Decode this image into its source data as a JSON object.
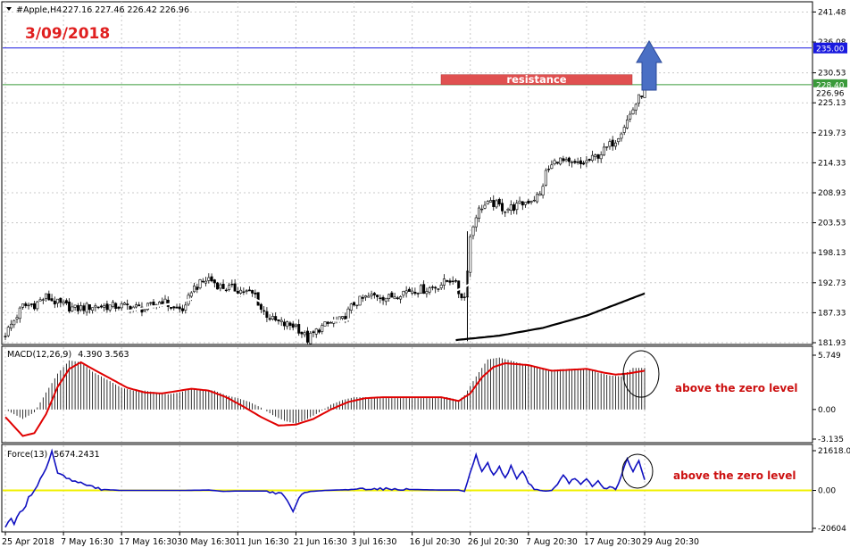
{
  "header": {
    "symbol": "#Apple,H4",
    "ohlc": "227.16 227.46 226.42 226.96"
  },
  "annotations": {
    "date": "3/09/2018",
    "resistance": "resistance",
    "macd_note": "above the zero level",
    "force_note": "above the zero level"
  },
  "colors": {
    "background": "#ffffff",
    "grid": "#c8c8c8",
    "candle_bull": "#ffffff",
    "candle_bear": "#000000",
    "ma_fast": "#ffffff",
    "ma_slow": "#000000",
    "line_235": "#1a1adf",
    "line_228": "#3a9a3a",
    "resistance_box": "#e05050",
    "arrow": "#4a6fc4",
    "macd_signal": "#e00000",
    "macd_hist": "#000000",
    "force": "#1010c0",
    "zero_line": "#f0f000",
    "date_text": "#e02020",
    "note_text": "#cc1010"
  },
  "chart_data": [
    {
      "type": "candlestick",
      "name": "price",
      "ylim": [
        181.93,
        243.0
      ],
      "price_ticks": [
        "241.48",
        "236.08",
        "230.53",
        "225.13",
        "219.73",
        "214.33",
        "208.93",
        "203.53",
        "198.13",
        "192.73",
        "187.33",
        "181.93"
      ],
      "levels": [
        {
          "value": 235.0,
          "label": "235.00"
        },
        {
          "value": 228.4,
          "label": "228.40"
        },
        {
          "value": 226.96,
          "label": "226.96"
        }
      ],
      "x_ticks": [
        "25 Apr 2018",
        "7 May 16:30",
        "17 May 16:30",
        "30 May 16:30",
        "11 Jun 16:30",
        "21 Jun 16:30",
        "3 Jul 16:30",
        "16 Jul 20:30",
        "26 Jul 20:30",
        "7 Aug 20:30",
        "17 Aug 20:30",
        "29 Aug 20:30"
      ],
      "resistance_zone": [
        228.4,
        230.2
      ],
      "close_anchors": [
        [
          0,
          183.5
        ],
        [
          3,
          186.0
        ],
        [
          6,
          188.5
        ],
        [
          10,
          188.8
        ],
        [
          14,
          190.2
        ],
        [
          18,
          189.0
        ],
        [
          24,
          188.0
        ],
        [
          30,
          188.5
        ],
        [
          36,
          188.5
        ],
        [
          42,
          188.5
        ],
        [
          48,
          188.0
        ],
        [
          54,
          189.5
        ],
        [
          58,
          188.0
        ],
        [
          62,
          188.0
        ],
        [
          64,
          191.5
        ],
        [
          70,
          193.5
        ],
        [
          74,
          192.0
        ],
        [
          80,
          191.5
        ],
        [
          86,
          190.5
        ],
        [
          88,
          188.0
        ],
        [
          92,
          186.0
        ],
        [
          96,
          185.2
        ],
        [
          100,
          185.0
        ],
        [
          104,
          182.5
        ],
        [
          108,
          184.5
        ],
        [
          112,
          185.5
        ],
        [
          116,
          186.0
        ],
        [
          120,
          189.0
        ],
        [
          124,
          190.0
        ],
        [
          128,
          190.5
        ],
        [
          132,
          190.0
        ],
        [
          136,
          191.0
        ],
        [
          140,
          191.5
        ],
        [
          144,
          191.5
        ],
        [
          148,
          192.0
        ],
        [
          152,
          193.0
        ],
        [
          154,
          193.5
        ],
        [
          156,
          191.0
        ],
        [
          158,
          190.0
        ],
        [
          160,
          201.0
        ],
        [
          162,
          205.0
        ],
        [
          164,
          206.5
        ],
        [
          168,
          207.0
        ],
        [
          172,
          206.0
        ],
        [
          176,
          206.5
        ],
        [
          180,
          207.5
        ],
        [
          184,
          208.5
        ],
        [
          186,
          212.5
        ],
        [
          190,
          215.0
        ],
        [
          194,
          214.0
        ],
        [
          198,
          214.0
        ],
        [
          202,
          215.0
        ],
        [
          206,
          216.5
        ],
        [
          210,
          218.5
        ],
        [
          214,
          222.0
        ],
        [
          217,
          225.0
        ],
        [
          219,
          226.8
        ],
        [
          220,
          226.96
        ]
      ],
      "ma_fast_anchors": [
        [
          20,
          186.0
        ],
        [
          40,
          187.5
        ],
        [
          60,
          189.2
        ],
        [
          72,
          191.0
        ],
        [
          84,
          190.2
        ],
        [
          100,
          186.5
        ],
        [
          116,
          185.8
        ],
        [
          130,
          188.0
        ],
        [
          146,
          190.0
        ],
        [
          156,
          191.5
        ],
        [
          164,
          193.5
        ],
        [
          172,
          200.0
        ],
        [
          180,
          203.5
        ],
        [
          190,
          207.5
        ],
        [
          200,
          210.5
        ],
        [
          210,
          213.0
        ],
        [
          220,
          218.5
        ]
      ],
      "ma_slow_anchors": [
        [
          155,
          182.4
        ],
        [
          170,
          183.2
        ],
        [
          185,
          184.6
        ],
        [
          200,
          186.8
        ],
        [
          210,
          188.8
        ],
        [
          220,
          190.8
        ]
      ]
    },
    {
      "type": "bar",
      "name": "MACD(12,26,9)",
      "values_label": "4.390 3.563",
      "ylim": [
        -3.135,
        5.749
      ],
      "ticks": [
        "5.749",
        "0.00",
        "-3.135"
      ],
      "hist_anchors": [
        [
          0,
          0.0
        ],
        [
          6,
          -1.0
        ],
        [
          10,
          -0.3
        ],
        [
          14,
          1.8
        ],
        [
          18,
          3.8
        ],
        [
          22,
          5.2
        ],
        [
          26,
          5.0
        ],
        [
          30,
          4.0
        ],
        [
          36,
          3.0
        ],
        [
          40,
          2.3
        ],
        [
          44,
          2.0
        ],
        [
          48,
          2.0
        ],
        [
          52,
          1.8
        ],
        [
          56,
          1.6
        ],
        [
          60,
          1.8
        ],
        [
          64,
          2.2
        ],
        [
          68,
          2.1
        ],
        [
          72,
          2.0
        ],
        [
          76,
          1.5
        ],
        [
          80,
          1.2
        ],
        [
          84,
          0.8
        ],
        [
          88,
          0.2
        ],
        [
          92,
          -0.6
        ],
        [
          96,
          -1.2
        ],
        [
          100,
          -1.5
        ],
        [
          104,
          -1.0
        ],
        [
          108,
          -0.3
        ],
        [
          112,
          0.5
        ],
        [
          116,
          1.0
        ],
        [
          120,
          1.3
        ],
        [
          124,
          1.3
        ],
        [
          128,
          1.2
        ],
        [
          132,
          1.2
        ],
        [
          136,
          1.2
        ],
        [
          140,
          1.2
        ],
        [
          144,
          1.2
        ],
        [
          148,
          1.2
        ],
        [
          152,
          1.3
        ],
        [
          156,
          1.0
        ],
        [
          158,
          1.5
        ],
        [
          162,
          3.5
        ],
        [
          166,
          5.3
        ],
        [
          170,
          5.5
        ],
        [
          176,
          5.0
        ],
        [
          182,
          4.5
        ],
        [
          188,
          4.2
        ],
        [
          194,
          4.3
        ],
        [
          200,
          4.3
        ],
        [
          204,
          3.9
        ],
        [
          208,
          3.6
        ],
        [
          212,
          3.5
        ],
        [
          216,
          4.4
        ],
        [
          220,
          4.4
        ]
      ],
      "signal_anchors": [
        [
          0,
          -0.8
        ],
        [
          6,
          -2.8
        ],
        [
          10,
          -2.5
        ],
        [
          14,
          -0.5
        ],
        [
          18,
          2.4
        ],
        [
          22,
          4.3
        ],
        [
          26,
          5.0
        ],
        [
          30,
          4.3
        ],
        [
          36,
          3.3
        ],
        [
          42,
          2.3
        ],
        [
          48,
          1.8
        ],
        [
          54,
          1.7
        ],
        [
          60,
          2.0
        ],
        [
          64,
          2.2
        ],
        [
          70,
          2.0
        ],
        [
          76,
          1.3
        ],
        [
          82,
          0.3
        ],
        [
          88,
          -0.8
        ],
        [
          94,
          -1.7
        ],
        [
          100,
          -1.6
        ],
        [
          106,
          -1.0
        ],
        [
          112,
          0.0
        ],
        [
          118,
          0.8
        ],
        [
          124,
          1.2
        ],
        [
          130,
          1.3
        ],
        [
          140,
          1.3
        ],
        [
          150,
          1.3
        ],
        [
          156,
          0.9
        ],
        [
          160,
          1.7
        ],
        [
          164,
          3.4
        ],
        [
          168,
          4.5
        ],
        [
          172,
          4.9
        ],
        [
          180,
          4.7
        ],
        [
          188,
          4.1
        ],
        [
          194,
          4.2
        ],
        [
          200,
          4.3
        ],
        [
          206,
          3.9
        ],
        [
          210,
          3.7
        ],
        [
          214,
          3.8
        ],
        [
          220,
          4.1
        ]
      ]
    },
    {
      "type": "line",
      "name": "Force(13)",
      "values_label": "5674.2431",
      "ylim": [
        -20604.0,
        21618.01
      ],
      "ticks": [
        "21618.01",
        "0.00",
        "-20604"
      ],
      "force_anchors": [
        [
          0,
          -19500
        ],
        [
          2,
          -15000
        ],
        [
          3,
          -18000
        ],
        [
          5,
          -12000
        ],
        [
          7,
          -9000
        ],
        [
          8,
          -4000
        ],
        [
          10,
          0
        ],
        [
          12,
          6000
        ],
        [
          14,
          12000
        ],
        [
          16,
          21000
        ],
        [
          18,
          10000
        ],
        [
          20,
          8000
        ],
        [
          22,
          6000
        ],
        [
          24,
          5000
        ],
        [
          26,
          4000
        ],
        [
          28,
          3000
        ],
        [
          30,
          2000
        ],
        [
          32,
          1000
        ],
        [
          34,
          500
        ],
        [
          40,
          0
        ],
        [
          50,
          0
        ],
        [
          60,
          0
        ],
        [
          70,
          200
        ],
        [
          75,
          -500
        ],
        [
          80,
          -300
        ],
        [
          90,
          -300
        ],
        [
          95,
          -2000
        ],
        [
          97,
          -5000
        ],
        [
          99,
          -12000
        ],
        [
          101,
          -4000
        ],
        [
          103,
          -1000
        ],
        [
          105,
          -500
        ],
        [
          110,
          0
        ],
        [
          116,
          300
        ],
        [
          120,
          800
        ],
        [
          126,
          1000
        ],
        [
          132,
          800
        ],
        [
          140,
          500
        ],
        [
          150,
          200
        ],
        [
          156,
          200
        ],
        [
          158,
          -500
        ],
        [
          160,
          10000
        ],
        [
          162,
          19000
        ],
        [
          164,
          10000
        ],
        [
          166,
          15000
        ],
        [
          168,
          8000
        ],
        [
          170,
          13000
        ],
        [
          172,
          7000
        ],
        [
          174,
          13000
        ],
        [
          176,
          6000
        ],
        [
          178,
          11000
        ],
        [
          180,
          4000
        ],
        [
          182,
          1000
        ],
        [
          184,
          0
        ],
        [
          186,
          -300
        ],
        [
          188,
          0
        ],
        [
          190,
          3000
        ],
        [
          192,
          8000
        ],
        [
          194,
          4000
        ],
        [
          196,
          7000
        ],
        [
          198,
          3000
        ],
        [
          200,
          6000
        ],
        [
          202,
          2000
        ],
        [
          204,
          5000
        ],
        [
          206,
          1000
        ],
        [
          208,
          2000
        ],
        [
          210,
          500
        ],
        [
          212,
          8000
        ],
        [
          214,
          17000
        ],
        [
          216,
          10000
        ],
        [
          218,
          16000
        ],
        [
          220,
          5674
        ]
      ]
    }
  ]
}
